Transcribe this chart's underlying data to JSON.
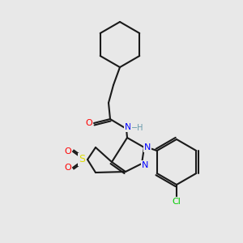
{
  "bg_color": "#e8e8e8",
  "bond_color": "#1a1a1a",
  "bond_width": 1.5,
  "atom_colors": {
    "O": "#ff0000",
    "N": "#0000ff",
    "S": "#dddd00",
    "Cl": "#00cc00",
    "H_amide": "#6699aa",
    "C": "#1a1a1a"
  }
}
